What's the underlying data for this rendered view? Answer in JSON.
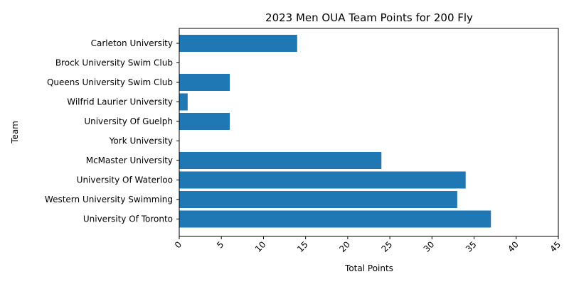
{
  "chart_data": {
    "type": "bar",
    "orientation": "horizontal",
    "title": "2023 Men OUA Team Points for 200 Fly",
    "xlabel": "Total Points",
    "ylabel": "Team",
    "xlim": [
      0,
      45
    ],
    "xticks": [
      0,
      5,
      10,
      15,
      20,
      25,
      30,
      35,
      40,
      45
    ],
    "grid": false,
    "bar_color": "#1f77b4",
    "categories": [
      "Carleton University",
      "Brock University Swim Club",
      "Queens University Swim Club",
      "Wilfrid Laurier University",
      "University Of Guelph",
      "York University",
      "McMaster University",
      "University Of Waterloo",
      "Western University Swimming",
      "University Of Toronto"
    ],
    "values": [
      14,
      0,
      6,
      1,
      6,
      0,
      24,
      34,
      33,
      37
    ]
  }
}
